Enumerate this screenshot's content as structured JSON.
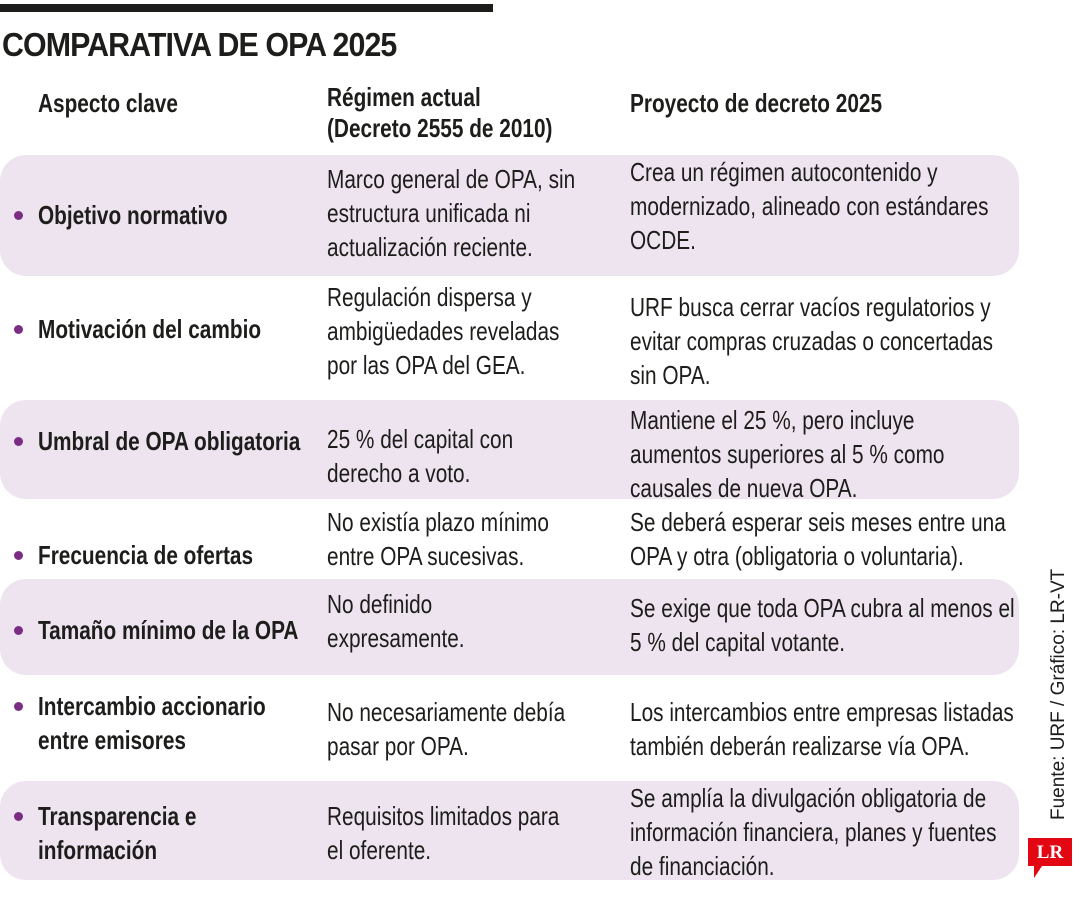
{
  "title": "COMPARATIVA DE OPA 2025",
  "headers": {
    "aspect": "Aspecto clave",
    "actual": "Régimen actual\n(Decreto 2555 de 2010)",
    "proyecto": "Proyecto de decreto 2025"
  },
  "rows": [
    {
      "aspect": "Objetivo normativo",
      "actual": "Marco general de OPA, sin\nestructura unificada ni\nactualización reciente.",
      "proyecto": "Crea un régimen autocontenido y\nmodernizado, alineado con estándares\nOCDE."
    },
    {
      "aspect": "Motivación del cambio",
      "actual": "Regulación dispersa y\nambigüedades reveladas\npor las OPA del GEA.",
      "proyecto": "URF busca cerrar vacíos regulatorios y\nevitar compras cruzadas o concertadas\nsin OPA."
    },
    {
      "aspect": "Umbral de OPA obligatoria",
      "actual": "25 % del capital con\nderecho a voto.",
      "proyecto": "Mantiene el 25 %, pero incluye\naumentos superiores al 5 % como\ncausales de nueva OPA."
    },
    {
      "aspect": "Frecuencia de ofertas",
      "actual": "No existía plazo mínimo\nentre OPA sucesivas.",
      "proyecto": "Se deberá esperar seis meses entre una\nOPA y otra (obligatoria o voluntaria)."
    },
    {
      "aspect": "Tamaño mínimo de la OPA",
      "actual": "No definido\nexpresamente.",
      "proyecto": "Se exige que toda OPA cubra al menos el\n5 % del capital votante."
    },
    {
      "aspect": "Intercambio accionario\nentre emisores",
      "actual": "No necesariamente debía\npasar por OPA.",
      "proyecto": "Los intercambios entre empresas listadas\ntambién deberán realizarse vía OPA."
    },
    {
      "aspect": "Transparencia e\ninformación",
      "actual": "Requisitos limitados para\nel oferente.",
      "proyecto": "Se amplía la divulgación obligatoria de\ninformación financiera, planes y fuentes\nde financiación."
    }
  ],
  "credit": "Fuente: URF / Gráfico: LR-VT",
  "logo": {
    "icon": "lr-logo-icon",
    "text": "LR",
    "color": "#e30613"
  },
  "colors": {
    "row_shade": "#eee4f0",
    "bullet": "#7b2d83",
    "text": "#1d1d1b"
  }
}
